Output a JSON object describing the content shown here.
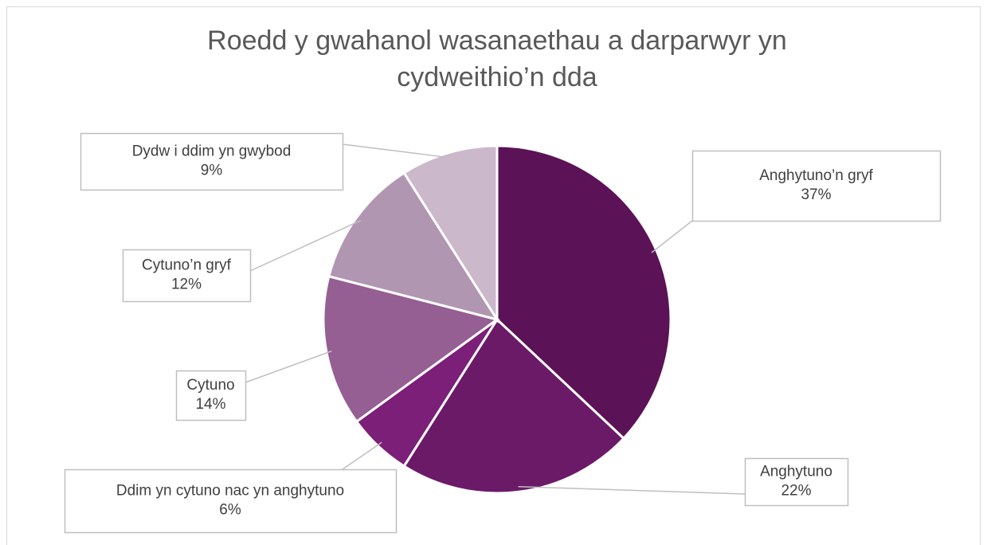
{
  "chart_data": {
    "type": "pie",
    "title": "Roedd y gwahanol wasanaethau a darparwyr yn cydweithio’n dda",
    "categories": [
      "Anghytuno’n gryf",
      "Anghytuno",
      "Ddim yn cytuno nac yn anghytuno",
      "Cytuno",
      "Cytuno’n gryf",
      "Dydw i ddim yn gwybod"
    ],
    "values": [
      37,
      22,
      6,
      14,
      12,
      9
    ],
    "value_labels": [
      "37%",
      "22%",
      "6%",
      "14%",
      "12%",
      "9%"
    ],
    "colors": [
      "#5c1257",
      "#6b1a68",
      "#7b1f78",
      "#955f93",
      "#b196b2",
      "#cbb8cb"
    ]
  }
}
